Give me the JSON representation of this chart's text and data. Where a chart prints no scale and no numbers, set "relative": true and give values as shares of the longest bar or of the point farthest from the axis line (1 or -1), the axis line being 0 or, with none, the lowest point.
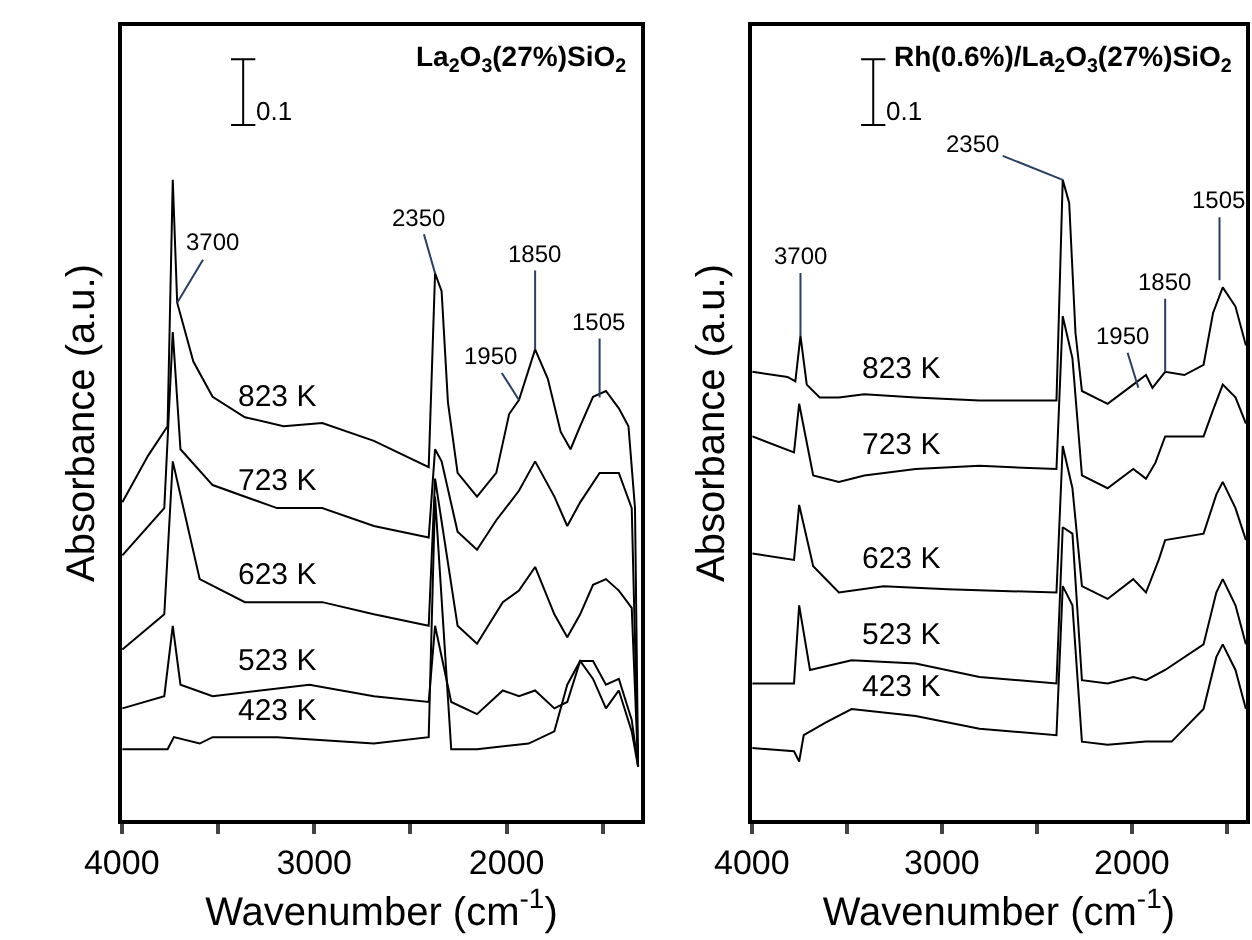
{
  "chart_data": [
    {
      "type": "line",
      "title": "La$_{2}$O$_{3}$(27%)SiO$_{2}$",
      "xlabel": "Wavenumber (cm$^{-1}$)",
      "ylabel": "Absorbance (a.u.)",
      "relative": true,
      "xlim": [
        4000,
        1300
      ],
      "xticks": [
        4000,
        {
          "value": 3500,
          "label": null
        },
        3000,
        {
          "value": 2500,
          "label": null
        },
        2000,
        {
          "value": 1500,
          "label": null
        }
      ],
      "tick_labels": "x",
      "series": [
        {
          "name": "823 K",
          "color": "#000000",
          "x": [
            3997,
            3863,
            3762,
            3735,
            3712,
            3628,
            3528,
            3360,
            3159,
            2958,
            2690,
            2405,
            2372,
            2338,
            2305,
            2255,
            2154,
            2054,
            1987,
            1936,
            1852,
            1786,
            1719,
            1668,
            1618,
            1551,
            1484,
            1417,
            1367,
            1333,
            1317
          ],
          "values": [
            0.496,
            0.569,
            0.615,
            1.0,
            0.808,
            0.716,
            0.661,
            0.629,
            0.615,
            0.62,
            0.592,
            0.551,
            0.854,
            0.826,
            0.652,
            0.542,
            0.505,
            0.542,
            0.634,
            0.656,
            0.735,
            0.689,
            0.606,
            0.579,
            0.615,
            0.661,
            0.67,
            0.643,
            0.615,
            0.487,
            0.083
          ]
        },
        {
          "name": "723 K",
          "color": "#000000",
          "x": [
            3997,
            3779,
            3735,
            3695,
            3528,
            3193,
            2958,
            2690,
            2405,
            2372,
            2338,
            2255,
            2154,
            2054,
            1936,
            1852,
            1752,
            1685,
            1618,
            1517,
            1417,
            1350,
            1317
          ],
          "values": [
            0.413,
            0.487,
            0.762,
            0.579,
            0.523,
            0.487,
            0.487,
            0.459,
            0.441,
            0.579,
            0.56,
            0.45,
            0.422,
            0.468,
            0.514,
            0.56,
            0.505,
            0.459,
            0.496,
            0.542,
            0.542,
            0.487,
            0.083
          ]
        },
        {
          "name": "623 K",
          "color": "#000000",
          "x": [
            3997,
            3779,
            3735,
            3595,
            3360,
            2958,
            2690,
            2405,
            2372,
            2255,
            2154,
            2020,
            1936,
            1852,
            1752,
            1685,
            1618,
            1551,
            1484,
            1417,
            1350,
            1317
          ],
          "values": [
            0.266,
            0.321,
            0.56,
            0.376,
            0.34,
            0.34,
            0.321,
            0.303,
            0.533,
            0.303,
            0.275,
            0.34,
            0.358,
            0.395,
            0.321,
            0.285,
            0.321,
            0.367,
            0.376,
            0.358,
            0.331,
            0.083
          ]
        },
        {
          "name": "523 K",
          "color": "#000000",
          "x": [
            3997,
            3779,
            3735,
            3695,
            3528,
            3025,
            2690,
            2405,
            2372,
            2288,
            2154,
            2020,
            1936,
            1852,
            1752,
            1685,
            1618,
            1551,
            1484,
            1417,
            1350,
            1317
          ],
          "values": [
            0.174,
            0.193,
            0.303,
            0.211,
            0.193,
            0.211,
            0.193,
            0.184,
            0.303,
            0.184,
            0.165,
            0.202,
            0.193,
            0.202,
            0.174,
            0.184,
            0.248,
            0.248,
            0.211,
            0.22,
            0.156,
            0.083
          ]
        },
        {
          "name": "423 K",
          "color": "#000000",
          "x": [
            3997,
            3762,
            3729,
            3595,
            3528,
            3193,
            2690,
            2405,
            2372,
            2288,
            2154,
            1886,
            1752,
            1685,
            1618,
            1551,
            1484,
            1417,
            1350,
            1317
          ],
          "values": [
            0.11,
            0.11,
            0.129,
            0.119,
            0.129,
            0.129,
            0.119,
            0.129,
            0.505,
            0.11,
            0.11,
            0.119,
            0.138,
            0.211,
            0.248,
            0.22,
            0.174,
            0.202,
            0.138,
            0.083
          ]
        }
      ],
      "annotations": [
        "0.1",
        {
          "text": "3700",
          "x": 3712,
          "y": 0.808
        },
        {
          "text": "2350",
          "x": 2372,
          "y": 0.854
        },
        {
          "text": "1950",
          "x": 1936,
          "y": 0.656
        },
        {
          "text": "1850",
          "x": 1852,
          "y": 0.735
        },
        {
          "text": "1505",
          "x": 1517,
          "y": 0.66
        }
      ]
    },
    {
      "type": "line",
      "title": "Rh(0.6%)/La$_{2}$O$_{3}$(27%)SiO$_{2}$",
      "xlabel": "Wavenumber (cm$^{-1}$)",
      "ylabel": "Absorbance (a.u.)",
      "relative": true,
      "xlim": [
        4000,
        1400
      ],
      "xticks": [
        4000,
        {
          "value": 3500,
          "label": null
        },
        3000,
        {
          "value": 2500,
          "label": null
        },
        2000,
        {
          "value": 1500,
          "label": null
        }
      ],
      "tick_labels": "x",
      "series": [
        {
          "name": "823 K",
          "color": "#000000",
          "x": [
            3997,
            3812,
            3771,
            3744,
            3711,
            3643,
            3542,
            3408,
            3138,
            2802,
            2397,
            2364,
            2330,
            2297,
            2263,
            2128,
            1993,
            1926,
            1892,
            1825,
            1724,
            1623,
            1573,
            1522,
            1455,
            1400
          ],
          "values": [
            0.7,
            0.692,
            0.685,
            0.756,
            0.68,
            0.66,
            0.66,
            0.665,
            0.66,
            0.655,
            0.655,
            1.0,
            0.964,
            0.761,
            0.67,
            0.65,
            0.68,
            0.695,
            0.675,
            0.7,
            0.695,
            0.711,
            0.792,
            0.832,
            0.802,
            0.741
          ]
        },
        {
          "name": "723 K",
          "color": "#000000",
          "x": [
            3997,
            3778,
            3751,
            3677,
            3542,
            3408,
            3138,
            2802,
            2397,
            2364,
            2313,
            2263,
            2128,
            1993,
            1926,
            1876,
            1825,
            1623,
            1573,
            1522,
            1455,
            1400
          ],
          "values": [
            0.599,
            0.574,
            0.65,
            0.538,
            0.528,
            0.538,
            0.548,
            0.553,
            0.548,
            0.787,
            0.721,
            0.538,
            0.518,
            0.548,
            0.533,
            0.558,
            0.599,
            0.599,
            0.64,
            0.68,
            0.66,
            0.619
          ]
        },
        {
          "name": "623 K",
          "color": "#000000",
          "x": [
            3997,
            3778,
            3751,
            3677,
            3542,
            3307,
            2970,
            2397,
            2364,
            2313,
            2263,
            2128,
            1993,
            1926,
            1859,
            1825,
            1623,
            1556,
            1522,
            1455,
            1400
          ],
          "values": [
            0.416,
            0.406,
            0.492,
            0.396,
            0.355,
            0.365,
            0.36,
            0.355,
            0.584,
            0.518,
            0.365,
            0.345,
            0.376,
            0.355,
            0.406,
            0.437,
            0.447,
            0.508,
            0.528,
            0.487,
            0.437
          ]
        },
        {
          "name": "523 K",
          "color": "#000000",
          "x": [
            3997,
            3778,
            3751,
            3694,
            3475,
            3138,
            2802,
            2397,
            2364,
            2313,
            2263,
            2128,
            1993,
            1926,
            1825,
            1623,
            1556,
            1522,
            1455,
            1400
          ],
          "values": [
            0.213,
            0.213,
            0.335,
            0.234,
            0.249,
            0.244,
            0.223,
            0.213,
            0.457,
            0.447,
            0.218,
            0.213,
            0.223,
            0.218,
            0.234,
            0.274,
            0.355,
            0.376,
            0.335,
            0.274
          ]
        },
        {
          "name": "423 K",
          "color": "#000000",
          "x": [
            3997,
            3778,
            3751,
            3727,
            3610,
            3475,
            3138,
            2802,
            2397,
            2364,
            2313,
            2263,
            2128,
            1926,
            1791,
            1623,
            1556,
            1522,
            1455,
            1400
          ],
          "values": [
            0.112,
            0.107,
            0.091,
            0.132,
            0.152,
            0.173,
            0.162,
            0.142,
            0.132,
            0.365,
            0.335,
            0.122,
            0.117,
            0.122,
            0.122,
            0.173,
            0.254,
            0.274,
            0.234,
            0.173
          ]
        }
      ],
      "annotations": [
        "0.1",
        {
          "text": "3700",
          "x": 3744,
          "y": 0.756
        },
        {
          "text": "2350",
          "x": 2364,
          "y": 1.0
        },
        {
          "text": "1950",
          "x": 1966,
          "y": 0.675
        },
        {
          "text": "1850",
          "x": 1825,
          "y": 0.7
        },
        {
          "text": "1505",
          "x": 1539,
          "y": 0.843
        }
      ]
    }
  ]
}
